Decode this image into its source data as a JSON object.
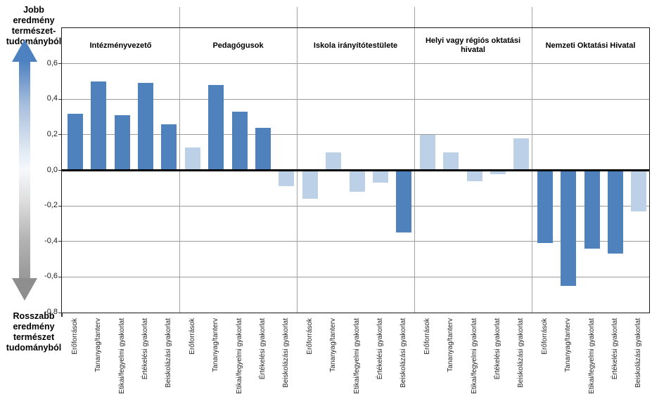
{
  "annotations": {
    "better": {
      "lines": [
        "Jobb eredmény",
        "természet-",
        "tudományból"
      ]
    },
    "worse": {
      "lines": [
        "Rosszabb",
        "eredmény",
        "természet",
        "tudományból"
      ]
    }
  },
  "chart_data": {
    "type": "bar",
    "title": "",
    "xlabel": "",
    "ylabel": "",
    "ylim": [
      -0.8,
      0.8
    ],
    "grid": true,
    "legend": false,
    "yticks": [
      {
        "value": 0.6,
        "label": "0,6"
      },
      {
        "value": 0.4,
        "label": "0,4"
      },
      {
        "value": 0.2,
        "label": "0,2"
      },
      {
        "value": 0.0,
        "label": "0,0"
      },
      {
        "value": -0.2,
        "label": "-0,2"
      },
      {
        "value": -0.4,
        "label": "-0,4"
      },
      {
        "value": -0.6,
        "label": "-0,6"
      },
      {
        "value": -0.8,
        "label": "-0,8"
      }
    ],
    "categories": [
      "Erőforrások",
      "Tananyag/tanterv",
      "Etikai/fegyelmi gyakorlat",
      "Értékelési gyakorlat",
      "Beiskolázási gyakorlat"
    ],
    "groups": [
      {
        "label": "Intézményvezető",
        "values": [
          0.32,
          0.5,
          0.31,
          0.49,
          0.26
        ],
        "shades": [
          "dark",
          "dark",
          "dark",
          "dark",
          "dark"
        ]
      },
      {
        "label": "Pedagógusok",
        "values": [
          0.13,
          0.48,
          0.33,
          0.24,
          -0.09
        ],
        "shades": [
          "light",
          "dark",
          "dark",
          "dark",
          "light"
        ]
      },
      {
        "label": "Iskola irányítótestülete",
        "values": [
          -0.16,
          0.1,
          -0.12,
          -0.07,
          -0.35
        ],
        "shades": [
          "light",
          "light",
          "light",
          "light",
          "dark"
        ]
      },
      {
        "label": "Helyi vagy régiós oktatási hivatal",
        "values": [
          0.2,
          0.1,
          -0.06,
          -0.02,
          0.18
        ],
        "shades": [
          "light",
          "light",
          "light",
          "light",
          "light"
        ]
      },
      {
        "label": "Nemzeti Oktatási Hivatal",
        "values": [
          -0.41,
          -0.65,
          -0.44,
          -0.47,
          -0.23
        ],
        "shades": [
          "dark",
          "dark",
          "dark",
          "dark",
          "light"
        ]
      }
    ],
    "colors": {
      "bar_dark": "#4F81BD",
      "bar_light": "#BCD0E8",
      "arrow_blue": "#4D81C0",
      "arrow_gray": "#8E8E8E",
      "gridline": "#9B9B9B",
      "zero_line": "#000000"
    }
  }
}
